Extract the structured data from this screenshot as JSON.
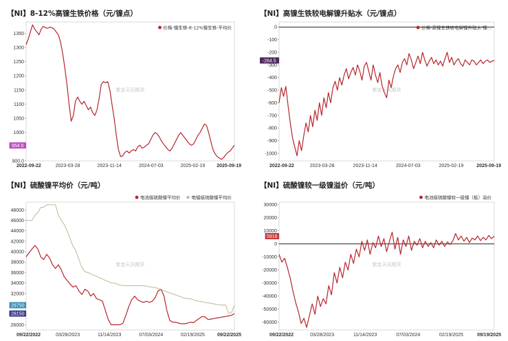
{
  "chart_data": [
    {
      "type": "line",
      "title": "【NI】8-12%高镍生铁价格（元/镍点）",
      "legend": [
        "价格-镍生铁-8-12%镍生铁-平均价"
      ],
      "legend_position": "top-right",
      "watermark": "紫金天风期货",
      "grid": false,
      "y_ticks": [
        900,
        950,
        1000,
        1050,
        1100,
        1150,
        1200,
        1250,
        1300,
        1350
      ],
      "ylim": [
        900,
        1390
      ],
      "y_tick_labels": [
        "900.0",
        "950.0",
        "1000",
        "1050",
        "1100",
        "1150",
        "1200",
        "1250",
        "1300",
        "1350"
      ],
      "x_ticks": [
        "2022-09-22",
        "2023-03-28",
        "2023-11-14",
        "2024-07-03",
        "2025-02-19",
        "2025-09-19"
      ],
      "x_ticks_bold": [
        true,
        false,
        false,
        false,
        false,
        true
      ],
      "tags": [
        {
          "value": 954.5,
          "label": "954.5",
          "color": "#c04ec0"
        }
      ],
      "series": [
        {
          "name": "价格-镍生铁-8-12%镍生铁-平均价",
          "color": "#b5252b",
          "values": [
            1310,
            1330,
            1355,
            1380,
            1365,
            1355,
            1345,
            1365,
            1375,
            1370,
            1368,
            1372,
            1370,
            1365,
            1355,
            1345,
            1320,
            1280,
            1230,
            1170,
            1100,
            1040,
            1060,
            1110,
            1125,
            1110,
            1100,
            1110,
            1095,
            1080,
            1090,
            1070,
            1060,
            1080,
            1120,
            1170,
            1180,
            1175,
            1180,
            1150,
            1100,
            1050,
            990,
            940,
            915,
            918,
            930,
            935,
            928,
            935,
            940,
            935,
            950,
            955,
            945,
            948,
            955,
            960,
            975,
            990,
            1000,
            995,
            985,
            970,
            960,
            950,
            940,
            935,
            945,
            960,
            975,
            990,
            1000,
            990,
            980,
            970,
            960,
            955,
            960,
            975,
            990,
            1000,
            1015,
            1030,
            1025,
            1000,
            970,
            940,
            925,
            915,
            910,
            905,
            912,
            922,
            930,
            935,
            945,
            955
          ]
        }
      ]
    },
    {
      "type": "line",
      "title": "【NI】高镍生铁较电解镍升贴水（元/镍点）",
      "legend": [
        "价格-高镍生铁较电解镍升贴水-镍..."
      ],
      "legend_position": "top-right",
      "watermark": "紫金天风期货",
      "grid": false,
      "y_ticks": [
        -1000,
        -900,
        -800,
        -700,
        -600,
        -500,
        -400,
        -300,
        -200,
        -100,
        0
      ],
      "ylim": [
        -1060,
        40
      ],
      "y_tick_labels": [
        "-1000",
        "-900",
        "-800",
        "-700",
        "-600",
        "-500",
        "-400",
        "-300",
        "-200",
        "-100",
        ".0"
      ],
      "x_ticks": [
        "2022-09-22",
        "2023-03-28",
        "2023-11-14",
        "2024-07-03",
        "2025-02-19",
        "2025-09-19"
      ],
      "x_ticks_bold": [
        true,
        false,
        false,
        false,
        false,
        true
      ],
      "tags": [
        {
          "value": -264.5,
          "label": "-264.5",
          "color": "#4b2a5a"
        }
      ],
      "series": [
        {
          "name": "价格-高镍生铁较电解镍升贴水-镍",
          "color": "#b5252b",
          "values": [
            -600,
            -480,
            -550,
            -470,
            -620,
            -760,
            -880,
            -950,
            -1020,
            -900,
            -980,
            -860,
            -760,
            -830,
            -700,
            -790,
            -660,
            -740,
            -600,
            -700,
            -560,
            -640,
            -520,
            -600,
            -480,
            -430,
            -500,
            -400,
            -460,
            -380,
            -330,
            -410,
            -360,
            -320,
            -380,
            -300,
            -350,
            -420,
            -310,
            -280,
            -350,
            -420,
            -300,
            -380,
            -440,
            -360,
            -470,
            -520,
            -560,
            -420,
            -480,
            -390,
            -330,
            -300,
            -360,
            -280,
            -250,
            -300,
            -210,
            -260,
            -330,
            -280,
            -230,
            -290,
            -200,
            -260,
            -310,
            -270,
            -240,
            -290,
            -260,
            -300,
            -270,
            -310,
            -250,
            -200,
            -280,
            -240,
            -300,
            -270,
            -250,
            -290,
            -310,
            -260,
            -280,
            -300,
            -260,
            -270,
            -300,
            -280,
            -260,
            -290,
            -270,
            -260,
            -280,
            -270,
            -265
          ]
        }
      ]
    },
    {
      "type": "line",
      "title": "【NI】硫酸镍平均价（元/吨）",
      "legend": [
        "电池级硫酸镍平均价",
        "电镀级硫酸镍平均价"
      ],
      "legend_position": "top-right",
      "watermark": "紫金天风期货",
      "grid": false,
      "y_ticks": [
        26000,
        28000,
        30000,
        32000,
        34000,
        36000,
        38000,
        40000,
        42000,
        44000,
        46000,
        48000
      ],
      "ylim": [
        25000,
        49500
      ],
      "y_tick_labels": [
        "26000",
        "28000",
        "30000",
        "32000",
        "34000",
        "36000",
        "38000",
        "40000",
        "42000",
        "44000",
        "46000",
        "48000"
      ],
      "x_ticks": [
        "09/22/2022",
        "03/28/2023",
        "11/14/2023",
        "07/03/2024",
        "02/19/2025",
        "09/22/2025"
      ],
      "x_ticks_bold": [
        true,
        false,
        false,
        false,
        false,
        true
      ],
      "tags": [
        {
          "value": 29750,
          "label": "29750",
          "color": "#3a8fb7"
        },
        {
          "value": 28150,
          "label": "28150",
          "color": "#3c3c8c"
        }
      ],
      "series": [
        {
          "name": "电池级硫酸镍平均价",
          "color": "#b5252b",
          "values": [
            39000,
            39800,
            40500,
            41200,
            40500,
            39000,
            38500,
            39500,
            38800,
            37500,
            36800,
            37500,
            36500,
            35200,
            34500,
            33800,
            33200,
            33500,
            32500,
            31800,
            32800,
            32500,
            31500,
            32000,
            31000,
            30800,
            30500,
            28800,
            27000,
            26000,
            26000,
            26000,
            26000,
            26300,
            27800,
            29500,
            30800,
            31500,
            30800,
            30500,
            30300,
            30500,
            30300,
            30500,
            31200,
            32500,
            32800,
            31500,
            28700,
            26800,
            26500,
            26500,
            26300,
            26200,
            26200,
            26300,
            26500,
            26400,
            26800,
            27200,
            27600,
            27500,
            27000,
            27100,
            27200,
            27300,
            27400,
            27500,
            27600,
            27700,
            27800,
            28150
          ]
        },
        {
          "name": "电镀级硫酸镍平均价",
          "color": "#c9c2a6",
          "values": [
            46000,
            46000,
            46000,
            47000,
            47500,
            48500,
            48500,
            49000,
            49000,
            49000,
            49000,
            47000,
            46000,
            45200,
            44000,
            42500,
            41000,
            40200,
            38500,
            37000,
            36200,
            36000,
            35800,
            35500,
            35300,
            35000,
            34800,
            34500,
            34300,
            34000,
            34000,
            33800,
            33600,
            33500,
            33500,
            33500,
            33500,
            33500,
            33500,
            33500,
            33500,
            33400,
            33300,
            33200,
            33100,
            33000,
            32800,
            32500,
            32300,
            32100,
            31900,
            31700,
            31500,
            31300,
            31100,
            31000,
            31000,
            30800,
            30600,
            30500,
            30400,
            30300,
            30200,
            30100,
            30000,
            29900,
            29800,
            29800,
            29800,
            28200,
            28300,
            29750
          ]
        }
      ]
    },
    {
      "type": "line",
      "title": "【NI】硫酸镍较一级镍溢价（元/吨）",
      "legend": [
        "电池级硫酸镍较一级镍（板）溢价"
      ],
      "legend_position": "top-right",
      "watermark": "紫金天风期货",
      "grid": false,
      "y_ticks": [
        -60000,
        -50000,
        -40000,
        -30000,
        -20000,
        -10000,
        0,
        10000,
        20000,
        30000
      ],
      "ylim": [
        -66000,
        32000
      ],
      "y_tick_labels": [
        "-60000",
        "-50000",
        "-40000",
        "-30000",
        "-20000",
        "-10000",
        "0",
        "10000",
        "20000",
        "30000"
      ],
      "x_ticks": [
        "09/22/2022",
        "03/28/2023",
        "11/14/2023",
        "07/03/2024",
        "02/19/2025",
        "09/19/2025"
      ],
      "x_ticks_bold": [
        true,
        false,
        false,
        false,
        false,
        true
      ],
      "tags": [
        {
          "value": 5916,
          "label": "5916",
          "color": "#c23a3a"
        }
      ],
      "series": [
        {
          "name": "电池级硫酸镍较一级镍（板）溢价",
          "color": "#b5252b",
          "values": [
            -8000,
            -14000,
            -11000,
            -18000,
            -26000,
            -36000,
            -45000,
            -52000,
            -61000,
            -57000,
            -64000,
            -55000,
            -46000,
            -54000,
            -40000,
            -48000,
            -42000,
            -46000,
            -32000,
            -39000,
            -22000,
            -30000,
            -18000,
            -26000,
            -14000,
            -20000,
            -8000,
            -15000,
            -4000,
            -10000,
            2000,
            -5000,
            3000,
            -8000,
            1000,
            -3000,
            6000,
            -2000,
            4000,
            -6000,
            2000,
            9000,
            -4000,
            5000,
            -8000,
            3000,
            -2000,
            6000,
            -5000,
            2000,
            -1000,
            4000,
            -3000,
            2000,
            -2000,
            1000,
            -3000,
            3000,
            -1000,
            2000,
            -2000,
            1500,
            -500,
            2500,
            8000,
            3000,
            6000,
            2000,
            5000,
            1000,
            4500,
            3000,
            6000,
            2500,
            5000,
            3000,
            6500,
            4000,
            5916
          ]
        }
      ]
    }
  ]
}
